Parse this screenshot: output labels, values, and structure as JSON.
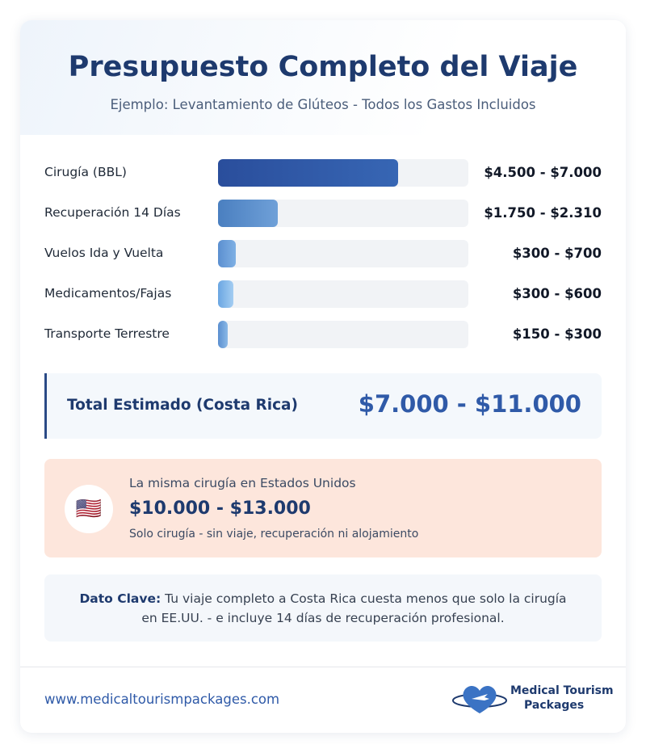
{
  "header": {
    "title": "Presupuesto Completo del Viaje",
    "subtitle": "Ejemplo: Levantamiento de Glúteos - Todos los Gastos Incluidos"
  },
  "rows": [
    {
      "label": "Cirugía (BBL)",
      "amount": "$4.500 - $7.000",
      "share": 72
    },
    {
      "label": "Recuperación 14 Días",
      "amount": "$1.750 - $2.310",
      "share": 24
    },
    {
      "label": "Vuelos Ida y Vuelta",
      "amount": "$300 - $700",
      "share": 7
    },
    {
      "label": "Medicamentos/Fajas",
      "amount": "$300 - $600",
      "share": 6
    },
    {
      "label": "Transporte Terrestre",
      "amount": "$150 - $300",
      "share": 4
    }
  ],
  "total": {
    "label": "Total Estimado (Costa Rica)",
    "amount": "$7.000 - $11.000"
  },
  "usa": {
    "flag": "🇺🇸",
    "intro": "La misma cirugía en Estados Unidos",
    "amount": "$10.000 - $13.000",
    "note": "Solo cirugía - sin viaje, recuperación ni alojamiento"
  },
  "key_fact": {
    "label": "Dato Clave:",
    "text": "Tu viaje completo a Costa Rica cuesta menos que solo la cirugía en EE.UU. - e incluye 14 días de recuperación profesional."
  },
  "footer": {
    "url": "www.medicaltourismpackages.com",
    "logo_line1": "Medical Tourism",
    "logo_line2": "Packages"
  }
}
